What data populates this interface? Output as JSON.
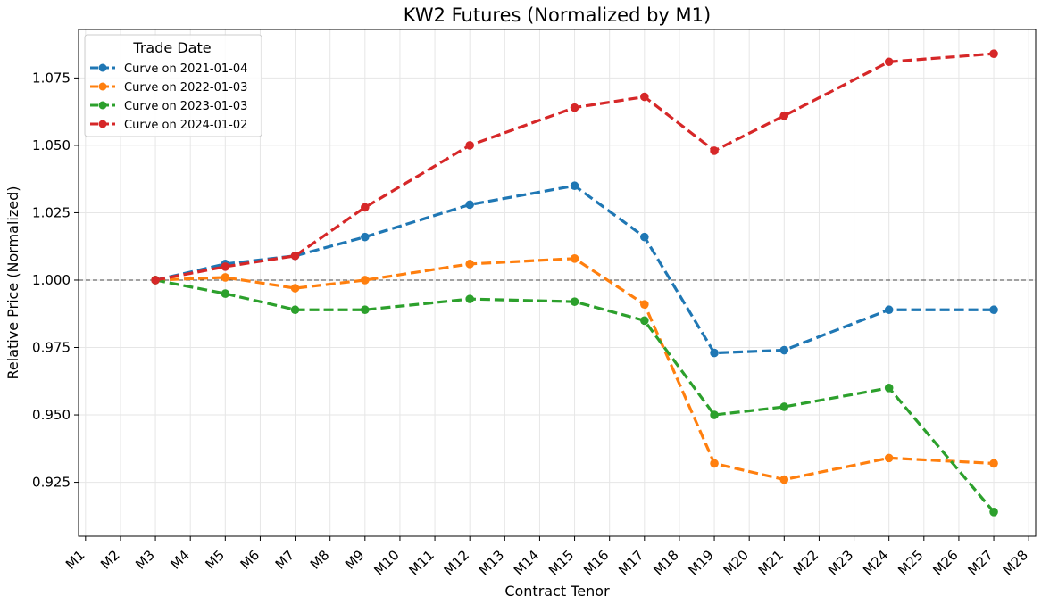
{
  "chart_data": {
    "type": "line",
    "title": "KW2 Futures (Normalized by M1)",
    "xlabel": "Contract Tenor",
    "ylabel": "Relative Price (Normalized)",
    "categories": [
      "M1",
      "M2",
      "M3",
      "M4",
      "M5",
      "M6",
      "M7",
      "M8",
      "M9",
      "M10",
      "M11",
      "M12",
      "M13",
      "M14",
      "M15",
      "M16",
      "M17",
      "M18",
      "M19",
      "M20",
      "M21",
      "M22",
      "M23",
      "M24",
      "M25",
      "M26",
      "M27",
      "M28"
    ],
    "ylim": [
      0.905,
      1.093
    ],
    "yticks": [
      0.925,
      0.95,
      0.975,
      1.0,
      1.025,
      1.05,
      1.075
    ],
    "ytick_labels": [
      "0.925",
      "0.950",
      "0.975",
      "1.000",
      "1.025",
      "1.050",
      "1.075"
    ],
    "reference_line": 1.0,
    "grid": true,
    "legend": {
      "title": "Trade Date",
      "placement": "top-left"
    },
    "series": [
      {
        "name": "Curve on 2021-01-04",
        "color": "#1f77b4",
        "x": [
          "M3",
          "M5",
          "M7",
          "M9",
          "M12",
          "M15",
          "M17",
          "M19",
          "M21",
          "M24",
          "M27"
        ],
        "values": [
          1.0,
          1.006,
          1.009,
          1.016,
          1.028,
          1.035,
          1.016,
          0.973,
          0.974,
          0.989,
          0.989
        ]
      },
      {
        "name": "Curve on 2022-01-03",
        "color": "#ff7f0e",
        "x": [
          "M3",
          "M5",
          "M7",
          "M9",
          "M12",
          "M15",
          "M17",
          "M19",
          "M21",
          "M24",
          "M27"
        ],
        "values": [
          1.0,
          1.001,
          0.997,
          1.0,
          1.006,
          1.008,
          0.991,
          0.932,
          0.926,
          0.934,
          0.932
        ]
      },
      {
        "name": "Curve on 2023-01-03",
        "color": "#2ca02c",
        "x": [
          "M3",
          "M5",
          "M7",
          "M9",
          "M12",
          "M15",
          "M17",
          "M19",
          "M21",
          "M24",
          "M27"
        ],
        "values": [
          1.0,
          0.995,
          0.989,
          0.989,
          0.993,
          0.992,
          0.985,
          0.95,
          0.953,
          0.96,
          0.914
        ]
      },
      {
        "name": "Curve on 2024-01-02",
        "color": "#d62728",
        "x": [
          "M3",
          "M5",
          "M7",
          "M9",
          "M12",
          "M15",
          "M17",
          "M19",
          "M21",
          "M24",
          "M27"
        ],
        "values": [
          1.0,
          1.005,
          1.009,
          1.027,
          1.05,
          1.064,
          1.068,
          1.048,
          1.061,
          1.081,
          1.084
        ]
      }
    ]
  }
}
